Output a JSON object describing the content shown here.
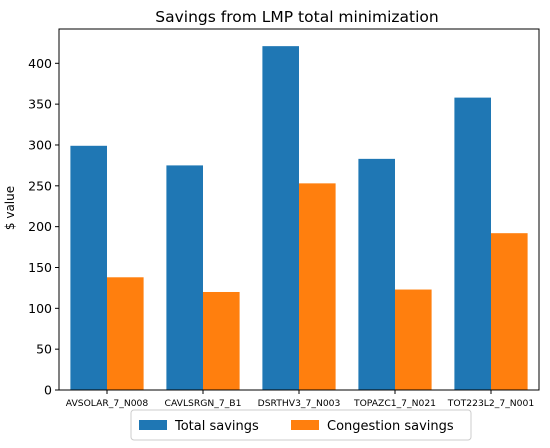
{
  "chart_data": {
    "type": "bar",
    "title": "Savings from LMP total minimization",
    "xlabel": "",
    "ylabel": "$ value",
    "categories": [
      "AVSOLAR_7_N008",
      "CAVLSRGN_7_B1",
      "DSRTHV3_7_N003",
      "TOPAZC1_7_N021",
      "TOT223L2_7_N001"
    ],
    "series": [
      {
        "name": "Total savings",
        "color": "#1f77b4",
        "values": [
          299,
          275,
          421,
          283,
          358
        ]
      },
      {
        "name": "Congestion savings",
        "color": "#ff7f0e",
        "values": [
          138,
          120,
          253,
          123,
          192
        ]
      }
    ],
    "ylim": [
      0,
      442
    ],
    "yticks": [
      0,
      50,
      100,
      150,
      200,
      250,
      300,
      350,
      400
    ],
    "grid": false,
    "legend_position": "bottom-center"
  }
}
